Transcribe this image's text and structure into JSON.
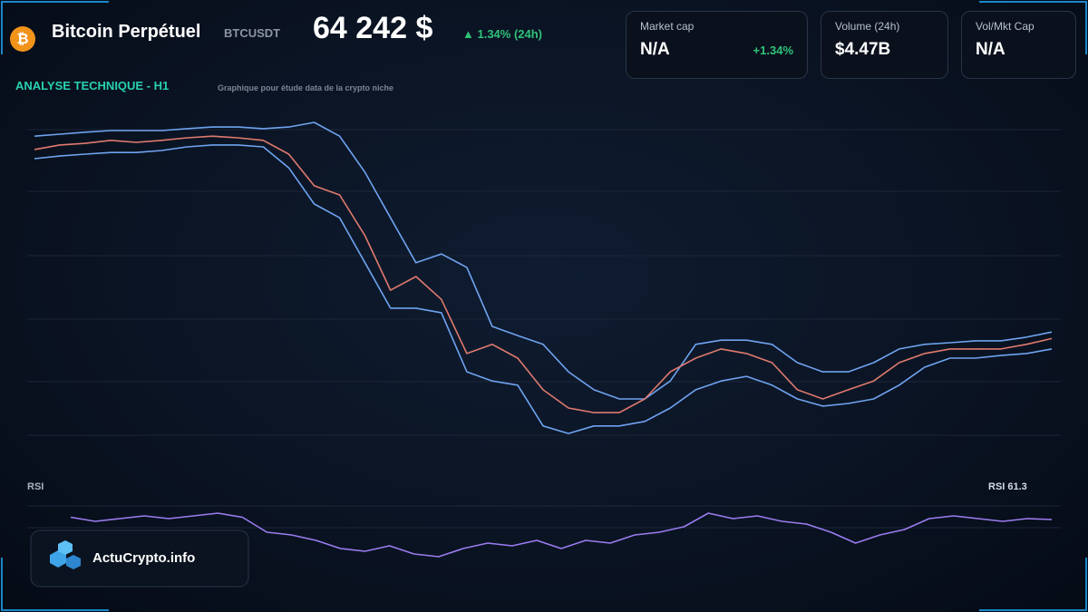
{
  "header": {
    "title": "Bitcoin Perpétuel",
    "symbol": "BTCUSDT",
    "price": "64 242 $",
    "change": "▲ 1.34% (24h)"
  },
  "stats": [
    {
      "label": "Market cap",
      "value": "N/A",
      "change": "+1.34%"
    },
    {
      "label": "Volume (24h)",
      "value": "$4.47B"
    },
    {
      "label": "Vol/Mkt Cap",
      "value": "N/A"
    }
  ],
  "chart_data": [
    {
      "type": "line",
      "title": "ANALYSE TECHNIQUE - H1",
      "subtitle": "Graphique pour étude data de la crypto niche",
      "ylim": [
        61000,
        71000
      ],
      "series": [
        {
          "color": "#6fa3f0",
          "values": [
            70440,
            70500,
            70560,
            70610,
            70610,
            70610,
            70670,
            70720,
            70720,
            70670,
            70720,
            70860,
            70440,
            69330,
            67940,
            66560,
            66830,
            66420,
            64610,
            64330,
            64060,
            63220,
            62670,
            62390,
            62390,
            62940,
            64060,
            64190,
            64190,
            64060,
            63500,
            63220,
            63220,
            63500,
            63920,
            64060,
            64110,
            64170,
            64170,
            64280,
            64440
          ]
        },
        {
          "color": "#6fa3f0",
          "values": [
            69750,
            69830,
            69890,
            69940,
            69940,
            70000,
            70110,
            70170,
            70170,
            70110,
            69470,
            68360,
            67940,
            66560,
            65170,
            65170,
            65030,
            63220,
            62940,
            62810,
            61560,
            61330,
            61560,
            61560,
            61700,
            62110,
            62670,
            62940,
            63080,
            62810,
            62390,
            62170,
            62250,
            62390,
            62810,
            63360,
            63640,
            63640,
            63720,
            63780,
            63920
          ]
        },
        {
          "color": "#e07a6e",
          "values": [
            70030,
            70170,
            70220,
            70310,
            70250,
            70310,
            70390,
            70440,
            70390,
            70310,
            69890,
            68920,
            68640,
            67390,
            65720,
            66140,
            65440,
            63780,
            64060,
            63640,
            62670,
            62110,
            61970,
            61970,
            62390,
            63220,
            63640,
            63920,
            63780,
            63500,
            62670,
            62390,
            62670,
            62940,
            63500,
            63780,
            63920,
            63920,
            63920,
            64060,
            64240
          ]
        }
      ]
    },
    {
      "type": "line",
      "title": "RSI",
      "ylim": [
        20,
        80
      ],
      "series": [
        {
          "color": "#9b7cf0",
          "values": [
            63,
            60,
            62,
            64,
            62,
            64,
            66,
            63,
            52,
            50,
            46,
            40,
            38,
            42,
            36,
            34,
            40,
            44,
            42,
            46,
            40,
            46,
            44,
            50,
            52,
            56,
            66,
            62,
            64,
            60,
            58,
            52,
            44,
            50,
            54,
            62,
            64,
            62,
            60,
            62,
            61.3
          ],
          "value_labels": [
            null,
            null,
            null,
            null,
            null,
            null,
            null,
            null,
            null,
            null,
            null,
            null,
            null,
            null,
            null,
            null,
            null,
            null,
            null,
            null,
            null,
            null,
            null,
            null,
            null,
            null,
            null,
            null,
            null,
            null,
            null,
            null,
            null,
            null,
            null,
            null,
            null,
            null,
            null,
            null,
            "RSI 61.3"
          ]
        }
      ]
    }
  ]
}
